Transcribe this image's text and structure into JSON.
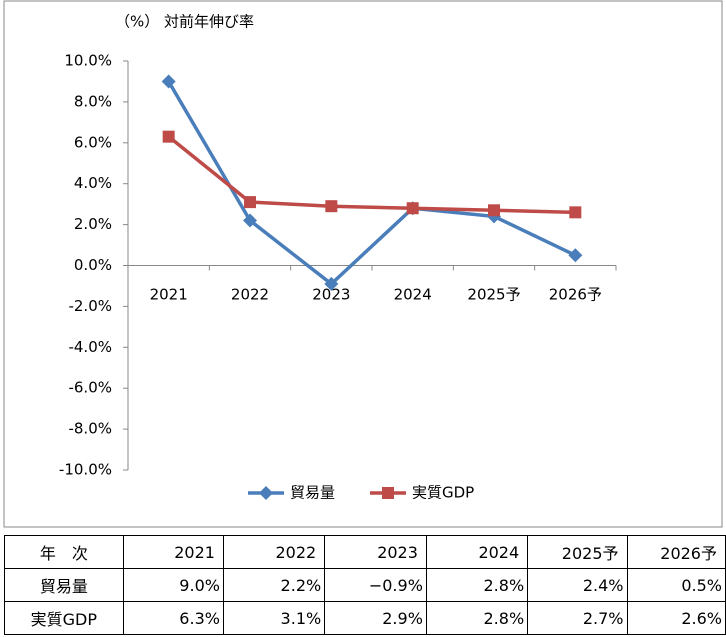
{
  "chart_data": {
    "type": "line",
    "y_label": "（%） 対前年伸び率",
    "categories": [
      "2021",
      "2022",
      "2023",
      "2024",
      "2025予",
      "2026予"
    ],
    "series": [
      {
        "name": "貿易量",
        "color": "#4a7ebb",
        "marker": "diamond",
        "values": [
          9.0,
          2.2,
          -0.9,
          2.8,
          2.4,
          0.5
        ]
      },
      {
        "name": "実質GDP",
        "color": "#be4b48",
        "marker": "square",
        "values": [
          6.3,
          3.1,
          2.9,
          2.8,
          2.7,
          2.6
        ]
      }
    ],
    "ylim": [
      -10,
      10
    ],
    "yticks": [
      {
        "value": 10,
        "label": "10.0%"
      },
      {
        "value": 8,
        "label": "8.0%"
      },
      {
        "value": 6,
        "label": "6.0%"
      },
      {
        "value": 4,
        "label": "4.0%"
      },
      {
        "value": 2,
        "label": "2.0%"
      },
      {
        "value": 0,
        "label": "0.0%"
      },
      {
        "value": -2,
        "label": "-2.0%"
      },
      {
        "value": -4,
        "label": "-4.0%"
      },
      {
        "value": -6,
        "label": "-6.0%"
      },
      {
        "value": -8,
        "label": "-8.0%"
      },
      {
        "value": -10,
        "label": "-10.0%"
      }
    ],
    "grid": false,
    "legend": "bottom"
  },
  "table": {
    "header": [
      "年　次",
      "2021",
      "2022",
      "2023",
      "2024",
      "2025予",
      "2026予"
    ],
    "rows": [
      [
        "貿易量",
        "9.0%",
        "2.2%",
        "−0.9%",
        "2.8%",
        "2.4%",
        "0.5%"
      ],
      [
        "実質GDP",
        "6.3%",
        "3.1%",
        "2.9%",
        "2.8%",
        "2.7%",
        "2.6%"
      ]
    ]
  }
}
